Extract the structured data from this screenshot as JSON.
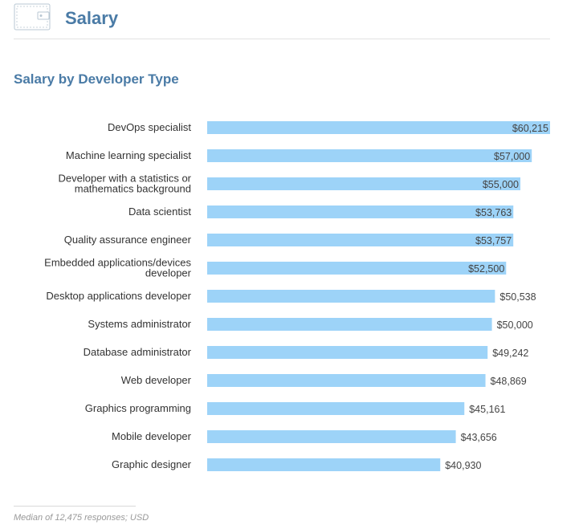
{
  "header": {
    "title": "Salary",
    "icon": "wallet-icon"
  },
  "colors": {
    "accent": "#4a7ba6",
    "bar": "#9dd3f8",
    "label": "#333333",
    "value": "#444444"
  },
  "chart_data": {
    "type": "bar",
    "orientation": "horizontal",
    "title": "Salary by Developer Type",
    "xlabel": "",
    "ylabel": "",
    "xlim": [
      0,
      60215
    ],
    "grid": false,
    "legend": "none",
    "categories": [
      "DevOps specialist",
      "Machine learning specialist",
      "Developer with a statistics or mathematics background",
      "Data scientist",
      "Quality assurance engineer",
      "Embedded applications/devices developer",
      "Desktop applications developer",
      "Systems administrator",
      "Database administrator",
      "Web developer",
      "Graphics programming",
      "Mobile developer",
      "Graphic designer"
    ],
    "category_lines": [
      [
        "DevOps specialist"
      ],
      [
        "Machine learning specialist"
      ],
      [
        "Developer with a statistics or",
        "mathematics background"
      ],
      [
        "Data scientist"
      ],
      [
        "Quality assurance engineer"
      ],
      [
        "Embedded applications/devices",
        "developer"
      ],
      [
        "Desktop applications developer"
      ],
      [
        "Systems administrator"
      ],
      [
        "Database administrator"
      ],
      [
        "Web developer"
      ],
      [
        "Graphics programming"
      ],
      [
        "Mobile developer"
      ],
      [
        "Graphic designer"
      ]
    ],
    "values": [
      60215,
      57000,
      55000,
      53763,
      53757,
      52500,
      50538,
      50000,
      49242,
      48869,
      45161,
      43656,
      40930
    ],
    "value_labels": [
      "$60,215",
      "$57,000",
      "$55,000",
      "$53,763",
      "$53,757",
      "$52,500",
      "$50,538",
      "$50,000",
      "$49,242",
      "$48,869",
      "$45,161",
      "$43,656",
      "$40,930"
    ]
  },
  "footnote": "Median of 12,475 responses; USD"
}
